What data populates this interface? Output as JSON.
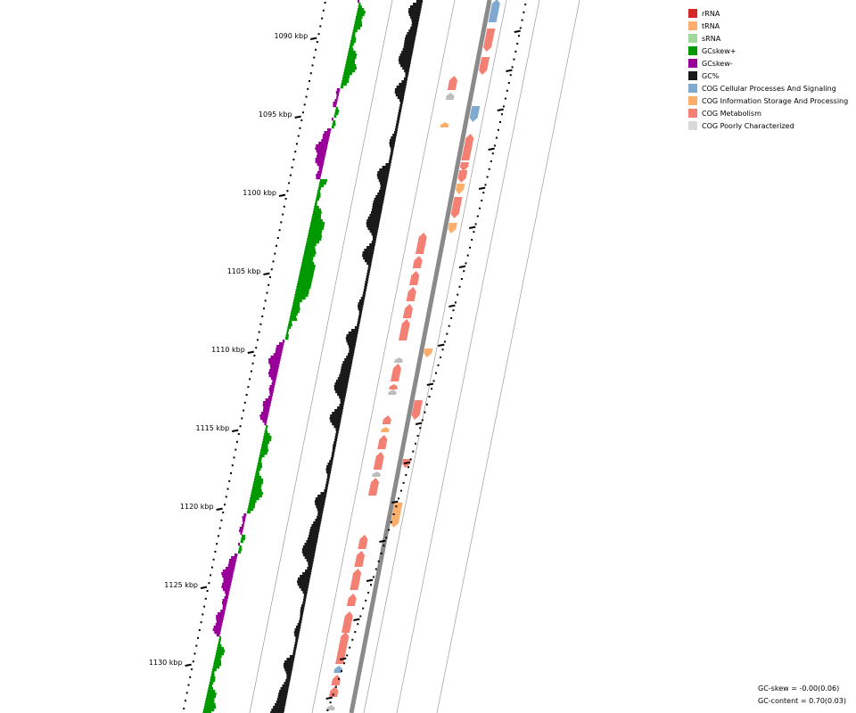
{
  "legend": [
    {
      "label": "rRNA",
      "color": "#d62728"
    },
    {
      "label": "tRNA",
      "color": "#fdae6b"
    },
    {
      "label": "sRNA",
      "color": "#a1d99b"
    },
    {
      "label": "GCskew+",
      "color": "#009900"
    },
    {
      "label": "GCskew-",
      "color": "#990099"
    },
    {
      "label": "GC%",
      "color": "#1a1a1a"
    },
    {
      "label": "COG Cellular Processes And Signaling",
      "color": "#7fa9cf"
    },
    {
      "label": "COG Information Storage And Processing",
      "color": "#fdae6b"
    },
    {
      "label": "COG Metabolism",
      "color": "#f47f73"
    },
    {
      "label": "COG Poorly Characterized",
      "color": "#d9d9d9"
    }
  ],
  "axis": {
    "labels": [
      "1090 kbp",
      "1095 kbp",
      "1100 kbp",
      "1105 kbp",
      "1110 kbp",
      "1115 kbp",
      "1120 kbp",
      "1125 kbp",
      "1130 kbp"
    ]
  },
  "stats": {
    "gc_skew": "GC-skew = -0.00(0.06)",
    "gc_content": "GC-content = 0.70(0.03)"
  },
  "features": {
    "strand_a": [
      {
        "cog": "COG Cellular Processes And Signaling",
        "dir": "fwd"
      },
      {
        "cog": "COG Metabolism",
        "dir": "rev"
      },
      {
        "cog": "COG Metabolism",
        "dir": "rev"
      },
      {
        "cog": "COG Cellular Processes And Signaling",
        "dir": "rev"
      },
      {
        "cog": "COG Metabolism",
        "dir": "fwd"
      },
      {
        "cog": "COG Metabolism",
        "dir": "rev"
      },
      {
        "cog": "COG Metabolism",
        "dir": "rev"
      },
      {
        "cog": "COG Information Storage And Processing",
        "dir": "rev"
      },
      {
        "cog": "COG Metabolism",
        "dir": "rev"
      },
      {
        "cog": "COG Information Storage And Processing",
        "dir": "rev"
      },
      {
        "cog": "COG Information Storage And Processing",
        "dir": "rev"
      },
      {
        "cog": "COG Metabolism",
        "dir": "rev"
      },
      {
        "cog": "COG Metabolism",
        "dir": "rev"
      },
      {
        "cog": "COG Information Storage And Processing",
        "dir": "rev"
      }
    ],
    "strand_b": [
      {
        "cog": "COG Metabolism",
        "dir": "fwd"
      },
      {
        "cog": "COG Poorly Characterized",
        "dir": "fwd"
      },
      {
        "cog": "COG Information Storage And Processing",
        "dir": "fwd"
      },
      {
        "cog": "COG Metabolism",
        "dir": "fwd"
      },
      {
        "cog": "COG Metabolism",
        "dir": "fwd"
      },
      {
        "cog": "COG Metabolism",
        "dir": "fwd"
      },
      {
        "cog": "COG Metabolism",
        "dir": "fwd"
      },
      {
        "cog": "COG Metabolism",
        "dir": "fwd"
      },
      {
        "cog": "COG Metabolism",
        "dir": "fwd"
      },
      {
        "cog": "COG Poorly Characterized",
        "dir": "fwd"
      },
      {
        "cog": "COG Metabolism",
        "dir": "fwd"
      },
      {
        "cog": "COG Metabolism",
        "dir": "fwd"
      },
      {
        "cog": "COG Poorly Characterized",
        "dir": "fwd"
      },
      {
        "cog": "COG Metabolism",
        "dir": "fwd"
      },
      {
        "cog": "COG Information Storage And Processing",
        "dir": "fwd"
      },
      {
        "cog": "COG Metabolism",
        "dir": "fwd"
      },
      {
        "cog": "COG Metabolism",
        "dir": "fwd"
      },
      {
        "cog": "COG Poorly Characterized",
        "dir": "fwd"
      },
      {
        "cog": "COG Metabolism",
        "dir": "fwd"
      },
      {
        "cog": "COG Metabolism",
        "dir": "fwd"
      },
      {
        "cog": "COG Metabolism",
        "dir": "fwd"
      },
      {
        "cog": "COG Metabolism",
        "dir": "fwd"
      },
      {
        "cog": "COG Metabolism",
        "dir": "fwd"
      },
      {
        "cog": "COG Metabolism",
        "dir": "fwd"
      },
      {
        "cog": "COG Metabolism",
        "dir": "fwd"
      },
      {
        "cog": "COG Cellular Processes And Signaling",
        "dir": "fwd"
      },
      {
        "cog": "COG Metabolism",
        "dir": "fwd"
      },
      {
        "cog": "COG Metabolism",
        "dir": "fwd"
      },
      {
        "cog": "COG Poorly Characterized",
        "dir": "fwd"
      }
    ]
  }
}
